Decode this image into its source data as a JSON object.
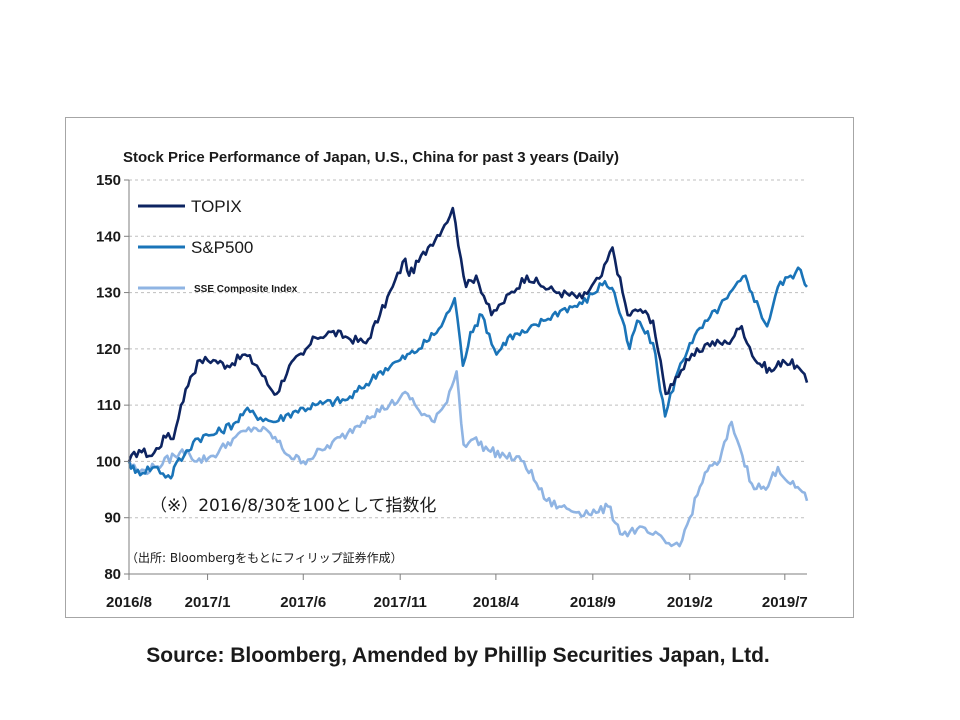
{
  "chart_data": {
    "type": "line",
    "title": "Stock Price Performance of Japan, U.S., China for past 3 years (Daily)",
    "x_tick_labels": [
      "2016/8",
      "2017/1",
      "2017/6",
      "2017/11",
      "2018/4",
      "2018/9",
      "2019/2",
      "2019/7"
    ],
    "x_start": "2016-08-30",
    "x_end": "2019-08-05",
    "ylim": [
      80,
      150
    ],
    "yticks": [
      80,
      90,
      100,
      110,
      120,
      130,
      140,
      150
    ],
    "grid": "horizontal dashed",
    "legend_placement": "top-left",
    "series": [
      {
        "name": "TOPIX",
        "color": "#0d2461",
        "points": [
          [
            "2016-08-30",
            100
          ],
          [
            "2016-09-15",
            102
          ],
          [
            "2016-10-05",
            101
          ],
          [
            "2016-10-31",
            105
          ],
          [
            "2016-11-08",
            104
          ],
          [
            "2016-11-20",
            110
          ],
          [
            "2016-12-05",
            115
          ],
          [
            "2016-12-20",
            118
          ],
          [
            "2017-01-10",
            118
          ],
          [
            "2017-02-01",
            117
          ],
          [
            "2017-03-01",
            119
          ],
          [
            "2017-03-20",
            117
          ],
          [
            "2017-04-10",
            113
          ],
          [
            "2017-04-20",
            112
          ],
          [
            "2017-05-10",
            117
          ],
          [
            "2017-06-01",
            119
          ],
          [
            "2017-06-20",
            122
          ],
          [
            "2017-07-15",
            123
          ],
          [
            "2017-08-10",
            122
          ],
          [
            "2017-09-08",
            121
          ],
          [
            "2017-09-30",
            126
          ],
          [
            "2017-10-20",
            131
          ],
          [
            "2017-11-09",
            136
          ],
          [
            "2017-11-15",
            133
          ],
          [
            "2017-12-15",
            138
          ],
          [
            "2018-01-10",
            142
          ],
          [
            "2018-01-23",
            145
          ],
          [
            "2018-02-05",
            136
          ],
          [
            "2018-02-13",
            131
          ],
          [
            "2018-03-01",
            133
          ],
          [
            "2018-03-25",
            126
          ],
          [
            "2018-04-10",
            128
          ],
          [
            "2018-05-20",
            133
          ],
          [
            "2018-06-15",
            131
          ],
          [
            "2018-07-10",
            130
          ],
          [
            "2018-08-15",
            129
          ],
          [
            "2018-09-15",
            133
          ],
          [
            "2018-10-02",
            138
          ],
          [
            "2018-10-26",
            126
          ],
          [
            "2018-11-15",
            127
          ],
          [
            "2018-12-05",
            125
          ],
          [
            "2018-12-25",
            112
          ],
          [
            "2019-01-10",
            115
          ],
          [
            "2019-01-31",
            118
          ],
          [
            "2019-03-01",
            121
          ],
          [
            "2019-04-01",
            121
          ],
          [
            "2019-04-24",
            124
          ],
          [
            "2019-05-15",
            118
          ],
          [
            "2019-06-10",
            116
          ],
          [
            "2019-06-28",
            118
          ],
          [
            "2019-07-20",
            117
          ],
          [
            "2019-08-05",
            114
          ]
        ]
      },
      {
        "name": "S&P500",
        "color": "#1a74b8",
        "points": [
          [
            "2016-08-30",
            100
          ],
          [
            "2016-09-09",
            98
          ],
          [
            "2016-10-10",
            99
          ],
          [
            "2016-11-04",
            97
          ],
          [
            "2016-11-09",
            99
          ],
          [
            "2016-11-25",
            101
          ],
          [
            "2016-12-13",
            104
          ],
          [
            "2017-01-15",
            105
          ],
          [
            "2017-02-15",
            107
          ],
          [
            "2017-03-01",
            109
          ],
          [
            "2017-04-15",
            107
          ],
          [
            "2017-05-20",
            109
          ],
          [
            "2017-06-20",
            110
          ],
          [
            "2017-08-10",
            111
          ],
          [
            "2017-09-01",
            113
          ],
          [
            "2017-10-01",
            116
          ],
          [
            "2017-11-01",
            118
          ],
          [
            "2017-12-01",
            120
          ],
          [
            "2018-01-05",
            124
          ],
          [
            "2018-01-26",
            129
          ],
          [
            "2018-02-08",
            117
          ],
          [
            "2018-02-20",
            123
          ],
          [
            "2018-03-10",
            126
          ],
          [
            "2018-04-02",
            119
          ],
          [
            "2018-04-20",
            122
          ],
          [
            "2018-05-20",
            123
          ],
          [
            "2018-06-15",
            125
          ],
          [
            "2018-07-15",
            127
          ],
          [
            "2018-08-15",
            128
          ],
          [
            "2018-09-20",
            132
          ],
          [
            "2018-10-05",
            130
          ],
          [
            "2018-10-29",
            120
          ],
          [
            "2018-11-10",
            125
          ],
          [
            "2018-12-05",
            121
          ],
          [
            "2018-12-24",
            108
          ],
          [
            "2019-01-10",
            115
          ],
          [
            "2019-02-01",
            121
          ],
          [
            "2019-03-01",
            125
          ],
          [
            "2019-04-01",
            129
          ],
          [
            "2019-04-30",
            133
          ],
          [
            "2019-05-10",
            130
          ],
          [
            "2019-06-03",
            124
          ],
          [
            "2019-06-20",
            131
          ],
          [
            "2019-07-10",
            133
          ],
          [
            "2019-07-26",
            134
          ],
          [
            "2019-08-05",
            131
          ]
        ]
      },
      {
        "name": "SSE Composite Index",
        "color": "#8fb4e3",
        "points": [
          [
            "2016-08-30",
            100
          ],
          [
            "2016-09-15",
            98
          ],
          [
            "2016-10-10",
            99
          ],
          [
            "2016-11-10",
            101
          ],
          [
            "2016-11-30",
            102
          ],
          [
            "2016-12-15",
            100
          ],
          [
            "2017-01-10",
            101
          ],
          [
            "2017-02-10",
            104
          ],
          [
            "2017-03-15",
            106
          ],
          [
            "2017-04-10",
            105
          ],
          [
            "2017-05-10",
            101
          ],
          [
            "2017-06-01",
            100
          ],
          [
            "2017-07-01",
            102
          ],
          [
            "2017-08-10",
            105
          ],
          [
            "2017-09-10",
            108
          ],
          [
            "2017-10-15",
            110
          ],
          [
            "2017-11-13",
            112
          ],
          [
            "2017-12-01",
            109
          ],
          [
            "2017-12-25",
            107
          ],
          [
            "2018-01-10",
            110
          ],
          [
            "2018-01-29",
            116
          ],
          [
            "2018-02-09",
            103
          ],
          [
            "2018-02-25",
            104
          ],
          [
            "2018-03-20",
            102
          ],
          [
            "2018-04-15",
            101
          ],
          [
            "2018-05-15",
            100
          ],
          [
            "2018-06-20",
            93
          ],
          [
            "2018-07-10",
            92
          ],
          [
            "2018-08-10",
            91
          ],
          [
            "2018-09-10",
            91
          ],
          [
            "2018-09-25",
            92
          ],
          [
            "2018-10-18",
            87
          ],
          [
            "2018-11-10",
            88
          ],
          [
            "2018-12-05",
            87
          ],
          [
            "2019-01-03",
            85
          ],
          [
            "2019-01-20",
            86
          ],
          [
            "2019-02-25",
            98
          ],
          [
            "2019-03-20",
            100
          ],
          [
            "2019-04-08",
            107
          ],
          [
            "2019-04-25",
            101
          ],
          [
            "2019-05-10",
            96
          ],
          [
            "2019-06-01",
            95
          ],
          [
            "2019-06-20",
            99
          ],
          [
            "2019-07-10",
            96
          ],
          [
            "2019-07-25",
            95
          ],
          [
            "2019-08-05",
            93
          ]
        ]
      }
    ]
  },
  "annotations": {
    "note_main": "（※）2016/8/30を100として指数化",
    "note_source": "（出所: Bloombergをもとにフィリップ証券作成）"
  },
  "source_caption": "Source: Bloomberg, Amended by Phillip Securities Japan, Ltd."
}
